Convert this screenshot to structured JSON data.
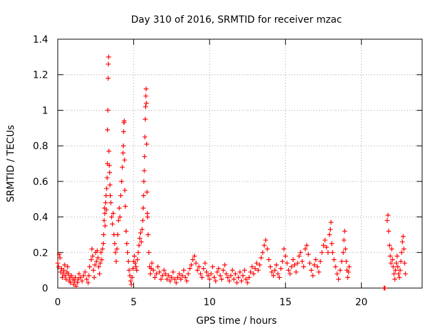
{
  "chart_data": {
    "type": "scatter",
    "title": "Day 310 of 2016, SRMTID for receiver mzac",
    "xlabel": "GPS time / hours",
    "ylabel": "SRMTID / TECUs",
    "xlim": [
      0,
      24
    ],
    "ylim": [
      0,
      1.4
    ],
    "xticks": [
      0,
      5,
      10,
      15,
      20
    ],
    "yticks": [
      0,
      0.2,
      0.4,
      0.6,
      0.8,
      1,
      1.2,
      1.4
    ],
    "grid": true,
    "marker": "+",
    "color": "#ff0000",
    "series": [
      {
        "name": "SRMTID",
        "points": [
          [
            0.0,
            0.14
          ],
          [
            0.05,
            0.12
          ],
          [
            0.1,
            0.19
          ],
          [
            0.15,
            0.17
          ],
          [
            0.2,
            0.09
          ],
          [
            0.25,
            0.11
          ],
          [
            0.3,
            0.06
          ],
          [
            0.35,
            0.08
          ],
          [
            0.4,
            0.1
          ],
          [
            0.45,
            0.13
          ],
          [
            0.5,
            0.07
          ],
          [
            0.55,
            0.05
          ],
          [
            0.6,
            0.09
          ],
          [
            0.65,
            0.12
          ],
          [
            0.7,
            0.08
          ],
          [
            0.75,
            0.04
          ],
          [
            0.8,
            0.06
          ],
          [
            0.85,
            0.03
          ],
          [
            0.9,
            0.07
          ],
          [
            1.0,
            0.05
          ],
          [
            1.05,
            0.02
          ],
          [
            1.1,
            0.04
          ],
          [
            1.15,
            0.06
          ],
          [
            1.2,
            0.01
          ],
          [
            1.3,
            0.03
          ],
          [
            1.35,
            0.05
          ],
          [
            1.4,
            0.08
          ],
          [
            1.5,
            0.06
          ],
          [
            1.6,
            0.04
          ],
          [
            1.7,
            0.07
          ],
          [
            1.8,
            0.09
          ],
          [
            1.9,
            0.05
          ],
          [
            2.0,
            0.03
          ],
          [
            2.05,
            0.07
          ],
          [
            2.1,
            0.12
          ],
          [
            2.2,
            0.16
          ],
          [
            2.25,
            0.22
          ],
          [
            2.3,
            0.18
          ],
          [
            2.35,
            0.1
          ],
          [
            2.4,
            0.06
          ],
          [
            2.45,
            0.13
          ],
          [
            2.5,
            0.2
          ],
          [
            2.55,
            0.15
          ],
          [
            2.6,
            0.21
          ],
          [
            2.65,
            0.17
          ],
          [
            2.7,
            0.12
          ],
          [
            2.75,
            0.08
          ],
          [
            2.8,
            0.14
          ],
          [
            2.85,
            0.2
          ],
          [
            2.9,
            0.16
          ],
          [
            2.95,
            0.22
          ],
          [
            3.0,
            0.25
          ],
          [
            3.02,
            0.3
          ],
          [
            3.05,
            0.38
          ],
          [
            3.08,
            0.45
          ],
          [
            3.1,
            0.42
          ],
          [
            3.12,
            0.35
          ],
          [
            3.15,
            0.48
          ],
          [
            3.18,
            0.52
          ],
          [
            3.2,
            0.44
          ],
          [
            3.22,
            0.56
          ],
          [
            3.25,
            0.62
          ],
          [
            3.27,
            0.7
          ],
          [
            3.28,
            0.89
          ],
          [
            3.3,
            1.0
          ],
          [
            3.32,
            1.18
          ],
          [
            3.33,
            1.26
          ],
          [
            3.35,
            1.3
          ],
          [
            3.37,
            0.77
          ],
          [
            3.4,
            0.69
          ],
          [
            3.42,
            0.65
          ],
          [
            3.44,
            0.58
          ],
          [
            3.46,
            0.52
          ],
          [
            3.5,
            0.48
          ],
          [
            3.55,
            0.4
          ],
          [
            3.6,
            0.36
          ],
          [
            3.65,
            0.42
          ],
          [
            3.7,
            0.3
          ],
          [
            3.75,
            0.25
          ],
          [
            3.8,
            0.2
          ],
          [
            3.85,
            0.15
          ],
          [
            3.9,
            0.22
          ],
          [
            3.95,
            0.3
          ],
          [
            4.0,
            0.38
          ],
          [
            4.05,
            0.45
          ],
          [
            4.1,
            0.4
          ],
          [
            4.15,
            0.52
          ],
          [
            4.2,
            0.6
          ],
          [
            4.25,
            0.68
          ],
          [
            4.3,
            0.76
          ],
          [
            4.32,
            0.8
          ],
          [
            4.34,
            0.88
          ],
          [
            4.36,
            0.93
          ],
          [
            4.38,
            0.94
          ],
          [
            4.4,
            0.72
          ],
          [
            4.42,
            0.55
          ],
          [
            4.45,
            0.46
          ],
          [
            4.5,
            0.32
          ],
          [
            4.55,
            0.25
          ],
          [
            4.6,
            0.2
          ],
          [
            4.65,
            0.15
          ],
          [
            4.7,
            0.1
          ],
          [
            4.75,
            0.07
          ],
          [
            4.8,
            0.04
          ],
          [
            4.85,
            0.02
          ],
          [
            4.9,
            0.06
          ],
          [
            4.95,
            0.11
          ],
          [
            5.0,
            0.15
          ],
          [
            5.05,
            0.18
          ],
          [
            5.1,
            0.14
          ],
          [
            5.15,
            0.12
          ],
          [
            5.2,
            0.1
          ],
          [
            5.25,
            0.16
          ],
          [
            5.3,
            0.2
          ],
          [
            5.35,
            0.24
          ],
          [
            5.4,
            0.28
          ],
          [
            5.45,
            0.31
          ],
          [
            5.5,
            0.26
          ],
          [
            5.55,
            0.33
          ],
          [
            5.6,
            0.38
          ],
          [
            5.63,
            0.45
          ],
          [
            5.65,
            0.52
          ],
          [
            5.67,
            0.6
          ],
          [
            5.7,
            0.66
          ],
          [
            5.72,
            0.74
          ],
          [
            5.74,
            0.85
          ],
          [
            5.76,
            0.95
          ],
          [
            5.78,
            1.02
          ],
          [
            5.8,
            1.08
          ],
          [
            5.82,
            1.12
          ],
          [
            5.84,
            1.04
          ],
          [
            5.86,
            0.81
          ],
          [
            5.88,
            0.54
          ],
          [
            5.9,
            0.42
          ],
          [
            5.92,
            0.4
          ],
          [
            5.95,
            0.3
          ],
          [
            6.0,
            0.2
          ],
          [
            6.05,
            0.12
          ],
          [
            6.1,
            0.08
          ],
          [
            6.15,
            0.11
          ],
          [
            6.2,
            0.14
          ],
          [
            6.3,
            0.1
          ],
          [
            6.4,
            0.06
          ],
          [
            6.5,
            0.08
          ],
          [
            6.6,
            0.12
          ],
          [
            6.7,
            0.09
          ],
          [
            6.8,
            0.05
          ],
          [
            6.9,
            0.07
          ],
          [
            7.0,
            0.1
          ],
          [
            7.1,
            0.08
          ],
          [
            7.2,
            0.05
          ],
          [
            7.3,
            0.07
          ],
          [
            7.4,
            0.04
          ],
          [
            7.5,
            0.06
          ],
          [
            7.6,
            0.09
          ],
          [
            7.7,
            0.05
          ],
          [
            7.8,
            0.03
          ],
          [
            7.9,
            0.06
          ],
          [
            8.0,
            0.08
          ],
          [
            8.1,
            0.05
          ],
          [
            8.2,
            0.07
          ],
          [
            8.3,
            0.1
          ],
          [
            8.4,
            0.06
          ],
          [
            8.5,
            0.04
          ],
          [
            8.6,
            0.08
          ],
          [
            8.7,
            0.11
          ],
          [
            8.8,
            0.13
          ],
          [
            8.9,
            0.16
          ],
          [
            9.0,
            0.18
          ],
          [
            9.1,
            0.14
          ],
          [
            9.2,
            0.1
          ],
          [
            9.3,
            0.12
          ],
          [
            9.4,
            0.08
          ],
          [
            9.5,
            0.06
          ],
          [
            9.6,
            0.11
          ],
          [
            9.7,
            0.14
          ],
          [
            9.8,
            0.09
          ],
          [
            9.9,
            0.07
          ],
          [
            10.0,
            0.05
          ],
          [
            10.1,
            0.08
          ],
          [
            10.2,
            0.12
          ],
          [
            10.3,
            0.06
          ],
          [
            10.4,
            0.04
          ],
          [
            10.5,
            0.09
          ],
          [
            10.6,
            0.11
          ],
          [
            10.7,
            0.07
          ],
          [
            10.8,
            0.05
          ],
          [
            10.9,
            0.1
          ],
          [
            11.0,
            0.13
          ],
          [
            11.1,
            0.08
          ],
          [
            11.2,
            0.06
          ],
          [
            11.3,
            0.04
          ],
          [
            11.4,
            0.07
          ],
          [
            11.5,
            0.1
          ],
          [
            11.6,
            0.05
          ],
          [
            11.7,
            0.08
          ],
          [
            11.8,
            0.03
          ],
          [
            11.9,
            0.06
          ],
          [
            12.0,
            0.09
          ],
          [
            12.1,
            0.04
          ],
          [
            12.2,
            0.07
          ],
          [
            12.3,
            0.1
          ],
          [
            12.4,
            0.05
          ],
          [
            12.5,
            0.03
          ],
          [
            12.6,
            0.06
          ],
          [
            12.7,
            0.09
          ],
          [
            12.8,
            0.12
          ],
          [
            12.9,
            0.08
          ],
          [
            13.0,
            0.11
          ],
          [
            13.1,
            0.14
          ],
          [
            13.2,
            0.1
          ],
          [
            13.3,
            0.13
          ],
          [
            13.4,
            0.17
          ],
          [
            13.5,
            0.2
          ],
          [
            13.6,
            0.24
          ],
          [
            13.7,
            0.27
          ],
          [
            13.8,
            0.22
          ],
          [
            13.9,
            0.16
          ],
          [
            14.0,
            0.12
          ],
          [
            14.1,
            0.09
          ],
          [
            14.2,
            0.07
          ],
          [
            14.3,
            0.1
          ],
          [
            14.4,
            0.13
          ],
          [
            14.5,
            0.08
          ],
          [
            14.6,
            0.06
          ],
          [
            14.7,
            0.11
          ],
          [
            14.8,
            0.15
          ],
          [
            14.9,
            0.22
          ],
          [
            15.0,
            0.18
          ],
          [
            15.1,
            0.14
          ],
          [
            15.2,
            0.1
          ],
          [
            15.3,
            0.08
          ],
          [
            15.4,
            0.12
          ],
          [
            15.5,
            0.16
          ],
          [
            15.6,
            0.13
          ],
          [
            15.7,
            0.09
          ],
          [
            15.8,
            0.14
          ],
          [
            15.9,
            0.18
          ],
          [
            16.0,
            0.2
          ],
          [
            16.1,
            0.15
          ],
          [
            16.2,
            0.12
          ],
          [
            16.3,
            0.22
          ],
          [
            16.4,
            0.24
          ],
          [
            16.5,
            0.19
          ],
          [
            16.6,
            0.14
          ],
          [
            16.7,
            0.1
          ],
          [
            16.8,
            0.07
          ],
          [
            16.9,
            0.13
          ],
          [
            17.0,
            0.16
          ],
          [
            17.1,
            0.12
          ],
          [
            17.2,
            0.09
          ],
          [
            17.3,
            0.15
          ],
          [
            17.4,
            0.2
          ],
          [
            17.5,
            0.24
          ],
          [
            17.6,
            0.27
          ],
          [
            17.7,
            0.23
          ],
          [
            17.8,
            0.2
          ],
          [
            17.9,
            0.3
          ],
          [
            17.95,
            0.33
          ],
          [
            18.0,
            0.37
          ],
          [
            18.05,
            0.25
          ],
          [
            18.1,
            0.2
          ],
          [
            18.2,
            0.16
          ],
          [
            18.3,
            0.12
          ],
          [
            18.4,
            0.08
          ],
          [
            18.5,
            0.05
          ],
          [
            18.6,
            0.1
          ],
          [
            18.7,
            0.15
          ],
          [
            18.8,
            0.2
          ],
          [
            18.85,
            0.27
          ],
          [
            18.9,
            0.32
          ],
          [
            18.95,
            0.22
          ],
          [
            19.0,
            0.15
          ],
          [
            19.05,
            0.1
          ],
          [
            19.1,
            0.06
          ],
          [
            19.15,
            0.09
          ],
          [
            19.2,
            0.12
          ],
          [
            21.5,
            0.0
          ],
          [
            21.55,
            0.0
          ],
          [
            21.7,
            0.38
          ],
          [
            21.75,
            0.41
          ],
          [
            21.8,
            0.32
          ],
          [
            21.85,
            0.24
          ],
          [
            21.9,
            0.18
          ],
          [
            21.95,
            0.14
          ],
          [
            22.0,
            0.22
          ],
          [
            22.05,
            0.16
          ],
          [
            22.1,
            0.12
          ],
          [
            22.15,
            0.08
          ],
          [
            22.2,
            0.05
          ],
          [
            22.25,
            0.1
          ],
          [
            22.3,
            0.14
          ],
          [
            22.35,
            0.18
          ],
          [
            22.4,
            0.12
          ],
          [
            22.45,
            0.08
          ],
          [
            22.5,
            0.06
          ],
          [
            22.55,
            0.1
          ],
          [
            22.6,
            0.15
          ],
          [
            22.65,
            0.2
          ],
          [
            22.7,
            0.26
          ],
          [
            22.75,
            0.29
          ],
          [
            22.8,
            0.22
          ],
          [
            22.85,
            0.14
          ],
          [
            22.9,
            0.08
          ]
        ]
      }
    ]
  }
}
